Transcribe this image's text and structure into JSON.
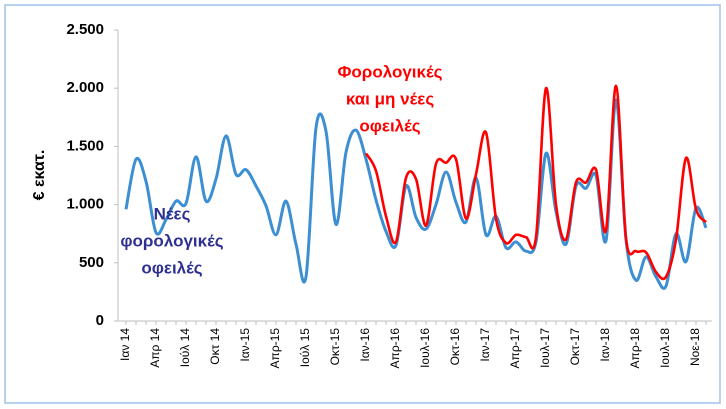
{
  "chart_data": {
    "type": "line",
    "y_label": "€ εκατ.",
    "categories": [
      "Ιαν 14",
      null,
      null,
      "Απρ 14",
      null,
      null,
      "Ιούλ 14",
      null,
      null,
      "Οκτ 14",
      null,
      null,
      "Ιαν-15",
      null,
      null,
      "Απρ-15",
      null,
      null,
      "Ιούλ 15",
      null,
      null,
      "Οκτ-15",
      null,
      null,
      "Ιαν-16",
      null,
      null,
      "Απρ-16",
      null,
      null,
      "Ιουλ-16",
      null,
      null,
      "Οκτ-16",
      null,
      null,
      "Ιαν-17",
      null,
      null,
      "Απρ-17",
      null,
      null,
      "Ιουλ-17",
      null,
      null,
      "Οκτ-17",
      null,
      null,
      "Ιαν-18",
      null,
      null,
      "Απρ-18",
      null,
      null,
      "Ιουλ-18",
      null,
      null,
      "Νοε-18",
      null
    ],
    "series": [
      {
        "color": "#3c8fd2",
        "values": [
          960,
          1390,
          1200,
          760,
          870,
          1030,
          1010,
          1410,
          1030,
          1220,
          1590,
          1260,
          1300,
          1160,
          990,
          740,
          1030,
          660,
          380,
          1660,
          1630,
          830,
          1450,
          1640,
          1390,
          1040,
          770,
          650,
          1160,
          890,
          790,
          1000,
          1280,
          1020,
          850,
          1230,
          740,
          900,
          630,
          680,
          600,
          680,
          1440,
          940,
          660,
          1160,
          1140,
          1250,
          690,
          1900,
          700,
          350,
          550,
          380,
          300,
          750,
          510,
          970,
          800
        ]
      },
      {
        "color": "#ff0000",
        "values": [
          null,
          null,
          null,
          null,
          null,
          null,
          null,
          null,
          null,
          null,
          null,
          null,
          null,
          null,
          null,
          null,
          null,
          null,
          null,
          null,
          null,
          null,
          null,
          null,
          1440,
          1290,
          900,
          680,
          1230,
          1220,
          820,
          1350,
          1360,
          1390,
          880,
          1260,
          1620,
          880,
          670,
          740,
          720,
          720,
          2000,
          1000,
          700,
          1190,
          1190,
          1300,
          780,
          2020,
          710,
          600,
          590,
          420,
          380,
          700,
          1400,
          960,
          850
        ]
      }
    ],
    "annotations": [
      {
        "color": "#2e3192",
        "lines": [
          "Νέες",
          "φορολογικές",
          "οφειλές"
        ]
      },
      {
        "color": "#ff0000",
        "lines": [
          "Φορολογικές",
          "και μη νέες",
          "οφειλές"
        ]
      }
    ],
    "ylim": [
      0,
      2500
    ],
    "yticks": [
      0,
      500,
      {
        "value": 1000,
        "label": "1.000"
      },
      {
        "value": 1500,
        "label": "1.500"
      },
      {
        "value": 2000,
        "label": "2.000"
      },
      {
        "value": 2500,
        "label": "2.500"
      }
    ]
  }
}
